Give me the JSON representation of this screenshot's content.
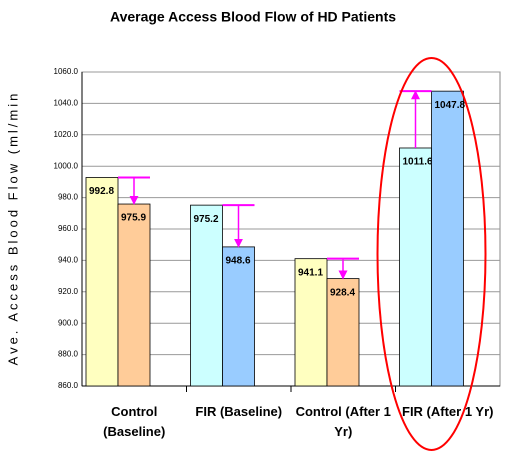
{
  "chart_data": {
    "type": "bar",
    "title": "Average Access Blood Flow of HD Patients",
    "y_label": "Ave. Access Blood Flow (ml/min",
    "categories": [
      "Control\n(Baseline)",
      "FIR (Baseline)",
      "Control (After 1\nYr)",
      "FIR (After 1 Yr)"
    ],
    "series": [
      {
        "values": [
          992.8,
          975.2,
          941.1,
          1011.6
        ],
        "colors": [
          "#ffffc0",
          "#ccffff",
          "#ffffc0",
          "#ccffff"
        ]
      },
      {
        "values": [
          975.9,
          948.6,
          928.4,
          1047.8
        ],
        "colors": [
          "#ffcc99",
          "#99ccff",
          "#ffcc99",
          "#99ccff"
        ]
      }
    ],
    "ylim": [
      860,
      1060
    ],
    "yticks": [
      {
        "value": 860,
        "label": "860.0"
      },
      {
        "value": 880,
        "label": "880.0"
      },
      {
        "value": 900,
        "label": "900.0"
      },
      {
        "value": 920,
        "label": "920.0"
      },
      {
        "value": 940,
        "label": "940.0"
      },
      {
        "value": 960,
        "label": "960.0"
      },
      {
        "value": 980,
        "label": "980.0"
      },
      {
        "value": 1000,
        "label": "1000.0"
      },
      {
        "value": 1020,
        "label": "1020.0"
      },
      {
        "value": 1040,
        "label": "1040.0"
      },
      {
        "value": 1060,
        "label": "1060.0"
      }
    ],
    "grid": true,
    "arrow_color": "#ff00ff",
    "highlight_color": "#ff0000"
  }
}
